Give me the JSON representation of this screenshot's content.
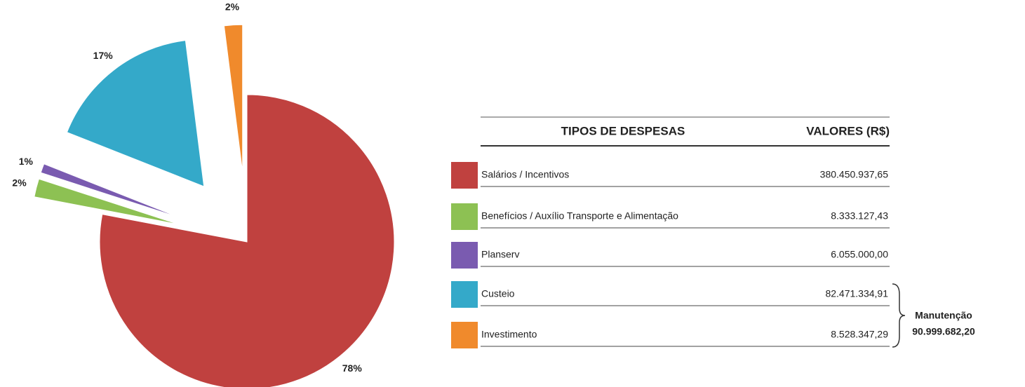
{
  "chart_data": {
    "type": "pie",
    "categories": [
      "Salários / Incentivos",
      "Benefícios / Auxílio Transporte e Alimentação",
      "Planserv",
      "Custeio",
      "Investimento"
    ],
    "values": [
      78,
      2,
      1,
      17,
      2
    ],
    "value_labels": [
      "78%",
      "2%",
      "1%",
      "17%",
      "2%"
    ],
    "colors": [
      "#c0413f",
      "#8dc153",
      "#7a5bb0",
      "#34a9c9",
      "#f08a2c"
    ],
    "exploded": [
      false,
      true,
      true,
      true,
      true
    ],
    "table": {
      "headers": [
        "TIPOS DE DESPESAS",
        "VALORES (R$)"
      ],
      "amounts": [
        "380.450.937,65",
        "8.333.127,43",
        "6.055.000,00",
        "82.471.334,91",
        "8.528.347,29"
      ]
    },
    "annotation": {
      "label": "Manutenção",
      "value": "90.999.682,20"
    }
  }
}
